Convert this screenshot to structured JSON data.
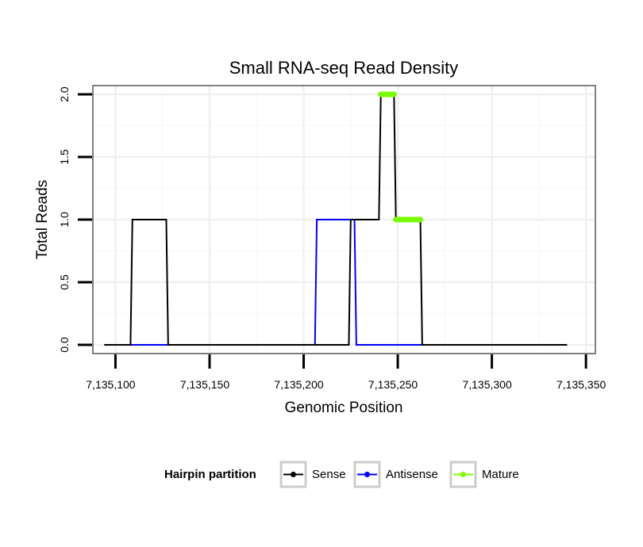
{
  "chart_data": {
    "type": "line",
    "title": "Small RNA-seq Read Density",
    "xlabel": "Genomic Position",
    "ylabel": "Total Reads",
    "xlim": [
      7135088,
      7135355
    ],
    "ylim": [
      -0.07,
      2.07
    ],
    "x_ticks": [
      7135100,
      7135150,
      7135200,
      7135250,
      7135300,
      7135350
    ],
    "x_tick_labels": [
      "7,135,100",
      "7,135,150",
      "7,135,200",
      "7,135,250",
      "7,135,300",
      "7,135,350"
    ],
    "y_ticks": [
      0,
      0.5,
      1,
      1.5,
      2
    ],
    "y_tick_labels": [
      "0.0",
      "0.5",
      "1.0",
      "1.5",
      "2.0"
    ],
    "grid": true,
    "legend": {
      "title": "Hairpin partition",
      "placement": "bottom",
      "entries": [
        "Sense",
        "Antisense",
        "Mature"
      ]
    },
    "series": [
      {
        "name": "Antisense",
        "color": "#0000ff",
        "x": [
          7135100,
          7135206,
          7135207,
          7135227,
          7135228,
          7135264
        ],
        "y": [
          0,
          0,
          1,
          1,
          0,
          0
        ]
      },
      {
        "name": "Sense",
        "color": "#000000",
        "x": [
          7135094,
          7135108,
          7135109,
          7135127,
          7135128,
          7135224,
          7135225,
          7135240,
          7135241,
          7135248,
          7135249,
          7135262,
          7135263,
          7135340
        ],
        "y": [
          0,
          0,
          1,
          1,
          0,
          0,
          1,
          1,
          2,
          2,
          1,
          1,
          0,
          0
        ]
      },
      {
        "name": "Mature",
        "color": "#7cfc00",
        "segments": [
          {
            "x": [
              7135241,
              7135248
            ],
            "y": [
              2,
              2
            ]
          },
          {
            "x": [
              7135249,
              7135262
            ],
            "y": [
              1,
              1
            ]
          }
        ]
      }
    ]
  }
}
